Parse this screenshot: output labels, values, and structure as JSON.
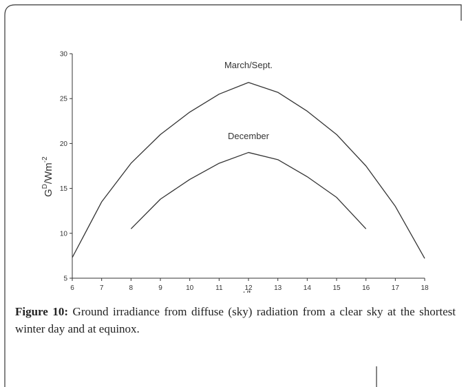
{
  "chart_data": {
    "type": "line",
    "xlabel": "t/h",
    "ylabel": [
      "G",
      "D",
      "/Wm",
      "-2"
    ],
    "x": [
      6,
      7,
      8,
      9,
      10,
      11,
      12,
      13,
      14,
      15,
      16,
      17,
      18
    ],
    "series": [
      {
        "name": "March/Sept.",
        "color": "#333333",
        "values": [
          7.3,
          13.5,
          17.8,
          21,
          23.5,
          25.5,
          26.8,
          25.7,
          23.6,
          21,
          17.5,
          13,
          7.2
        ],
        "label_at": [
          12,
          28.4
        ]
      },
      {
        "name": "December",
        "color": "#333333",
        "values": [
          null,
          null,
          10.5,
          13.8,
          16,
          17.8,
          19,
          18.2,
          16.3,
          14,
          10.5,
          null,
          null
        ],
        "label_at": [
          12,
          20.5
        ]
      }
    ],
    "xlim": [
      6,
      18
    ],
    "xticks": [
      6,
      7,
      8,
      9,
      10,
      11,
      12,
      13,
      14,
      15,
      16,
      17,
      18
    ],
    "ylim": [
      5,
      30
    ],
    "yticks": [
      5,
      10,
      15,
      20,
      25,
      30
    ]
  },
  "caption": {
    "label": "Figure 10:",
    "text": " Ground irradiance from diffuse (sky) radiation from a clear sky at the shortest winter day and at equinox."
  }
}
